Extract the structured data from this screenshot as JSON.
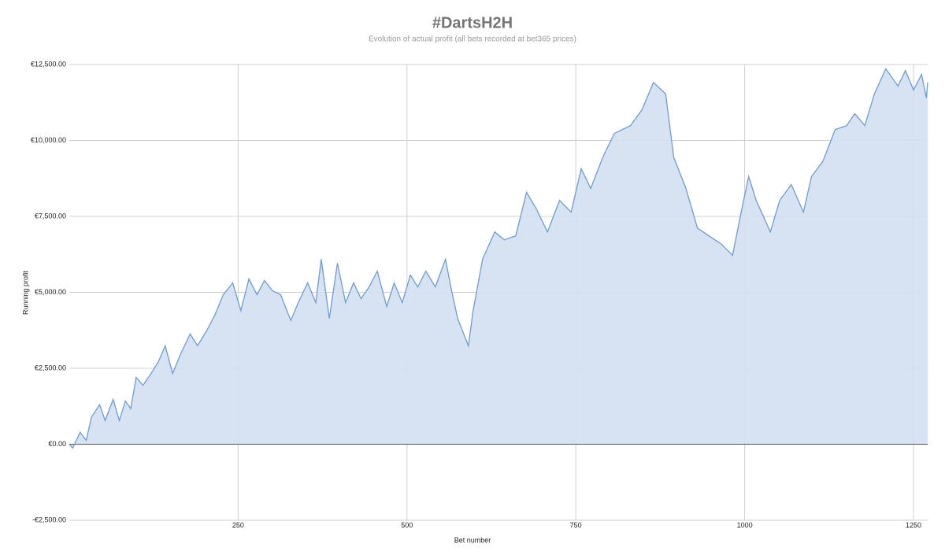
{
  "chart_data": {
    "type": "area",
    "title": "#DartsH2H",
    "subtitle": "Evolution of actual profit (all bets recorded at bet365 prices)",
    "x_label": "Bet number",
    "y_label": "Running profit",
    "color": "#6f9bd3",
    "fill": "#d3e0f1",
    "grid": true,
    "xlim": [
      0,
      1271
    ],
    "ylim": [
      -2500,
      12500
    ],
    "xticks": [
      250,
      500,
      750,
      1000,
      1250
    ],
    "yticks": [
      {
        "value": -2500,
        "label": "-€2,500.00"
      },
      {
        "value": 0,
        "label": "€0.00"
      },
      {
        "value": 2500,
        "label": "€2,500.00"
      },
      {
        "value": 5000,
        "label": "€5,000.00"
      },
      {
        "value": 7500,
        "label": "€7,500.00"
      },
      {
        "value": 10000,
        "label": "€10,000.00"
      },
      {
        "value": 12500,
        "label": "€12,500.00"
      }
    ],
    "x": [
      0,
      5,
      16,
      25,
      33,
      45,
      53,
      65,
      74,
      83,
      91,
      99,
      109,
      121,
      132,
      142,
      153,
      165,
      179,
      190,
      204,
      216,
      228,
      242,
      254,
      266,
      278,
      289,
      301,
      313,
      328,
      339,
      353,
      365,
      373,
      385,
      397,
      409,
      421,
      432,
      444,
      456,
      470,
      481,
      493,
      505,
      516,
      528,
      542,
      557,
      565,
      575,
      591,
      598,
      612,
      630,
      644,
      661,
      677,
      691,
      708,
      726,
      743,
      758,
      772,
      790,
      807,
      831,
      848,
      865,
      883,
      895,
      913,
      930,
      947,
      965,
      982,
      996,
      1006,
      1017,
      1038,
      1052,
      1069,
      1087,
      1099,
      1116,
      1134,
      1151,
      1163,
      1178,
      1192,
      1209,
      1227,
      1238,
      1250,
      1262,
      1269,
      1271
    ],
    "values": [
      0,
      -130,
      390,
      130,
      900,
      1300,
      780,
      1480,
      780,
      1420,
      1170,
      2200,
      1940,
      2330,
      2720,
      3240,
      2330,
      2980,
      3630,
      3240,
      3760,
      4270,
      4920,
      5310,
      4400,
      5440,
      4920,
      5390,
      5050,
      4920,
      4070,
      4660,
      5310,
      4660,
      6090,
      4140,
      5960,
      4660,
      5310,
      4790,
      5180,
      5700,
      4530,
      5310,
      4660,
      5570,
      5180,
      5700,
      5180,
      6090,
      5180,
      4140,
      3240,
      4400,
      6090,
      6990,
      6730,
      6860,
      8290,
      7770,
      6990,
      8030,
      7640,
      9070,
      8420,
      9450,
      10230,
      10490,
      11010,
      11910,
      11530,
      9450,
      8420,
      7120,
      6860,
      6600,
      6220,
      7770,
      8810,
      8030,
      6990,
      8030,
      8550,
      7640,
      8810,
      9320,
      10360,
      10490,
      10880,
      10490,
      11530,
      12360,
      11790,
      12300,
      11660,
      12170,
      11400,
      11910
    ]
  }
}
